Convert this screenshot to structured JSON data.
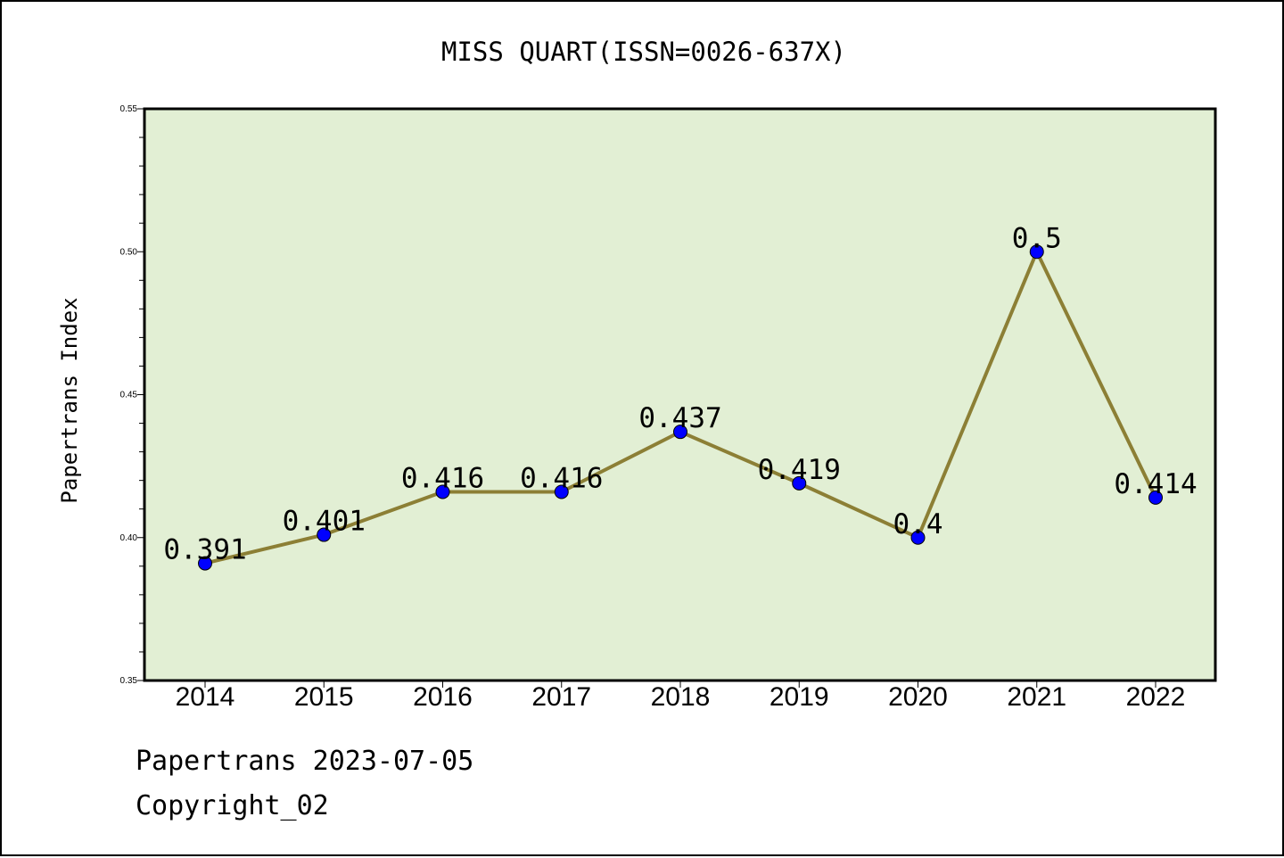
{
  "chart_data": {
    "type": "line",
    "title": "MISS QUART(ISSN=0026-637X)",
    "xlabel": "",
    "ylabel": "Papertrans Index",
    "categories": [
      "2014",
      "2015",
      "2016",
      "2017",
      "2018",
      "2019",
      "2020",
      "2021",
      "2022"
    ],
    "series": [
      {
        "values": [
          0.391,
          0.401,
          0.416,
          0.416,
          0.437,
          0.419,
          0.4,
          0.5,
          0.414
        ]
      }
    ],
    "data_labels": [
      "0.391",
      "0.401",
      "0.416",
      "0.416",
      "0.437",
      "0.419",
      "0.4",
      "0.5",
      "0.414"
    ],
    "ylim": [
      0.35,
      0.55
    ],
    "yticks": [
      "0.35",
      "0.40",
      "0.45",
      "0.50",
      "0.55"
    ],
    "grid": false,
    "legend": "none",
    "colors": {
      "plot_background": "#e2efd4",
      "line": "#8c7f35",
      "marker": "#0000ff",
      "axis": "#000000"
    }
  },
  "footer": {
    "source": "Papertrans 2023-07-05",
    "copyright": "Copyright_02"
  }
}
